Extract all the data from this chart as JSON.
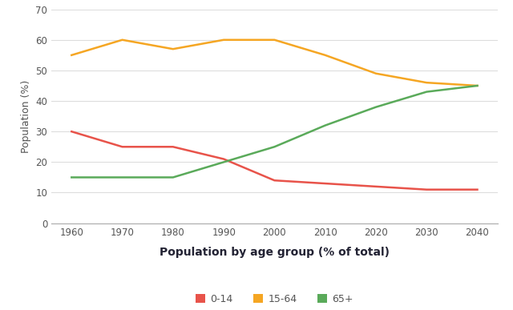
{
  "years": [
    1960,
    1970,
    1980,
    1990,
    2000,
    2010,
    2020,
    2030,
    2040
  ],
  "age_0_14": [
    30,
    25,
    25,
    21,
    14,
    13,
    12,
    11,
    11
  ],
  "age_15_64": [
    55,
    60,
    57,
    60,
    60,
    55,
    49,
    46,
    45
  ],
  "age_65plus": [
    15,
    15,
    15,
    20,
    25,
    32,
    38,
    43,
    45
  ],
  "colors": {
    "0-14": "#e8534a",
    "15-64": "#f5a623",
    "65+": "#5aaa5a"
  },
  "ylabel": "Population (%)",
  "xlabel": "Population by age group (% of total)",
  "ylim": [
    0,
    70
  ],
  "yticks": [
    0,
    10,
    20,
    30,
    40,
    50,
    60,
    70
  ],
  "legend_labels": [
    "0-14",
    "15-64",
    "65+"
  ],
  "bg_color": "#ffffff",
  "grid_color": "#dddddd",
  "line_width": 1.8,
  "xlabel_fontsize": 10,
  "ylabel_fontsize": 9,
  "tick_fontsize": 8.5,
  "legend_fontsize": 9,
  "tick_color": "#555555",
  "label_color": "#222233"
}
